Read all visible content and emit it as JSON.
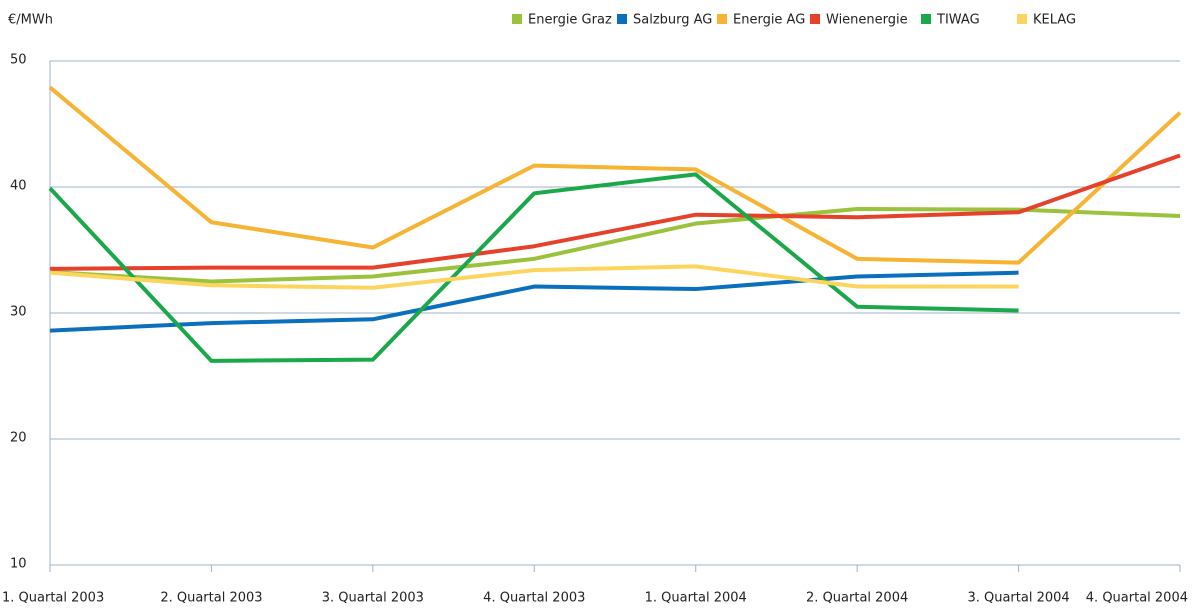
{
  "chart_data": {
    "type": "line",
    "y_label": "€/MWh",
    "categories": [
      "1. Quartal 2003",
      "2. Quartal 2003",
      "3. Quartal 2003",
      "4. Quartal 2003",
      "1. Quartal 2004",
      "2. Quartal 2004",
      "3. Quartal 2004",
      "4. Quartal 2004"
    ],
    "series": [
      {
        "name": "Energie Graz",
        "color": "#9bc23c",
        "values": [
          33.25,
          32.5,
          32.9,
          34.3,
          37.1,
          38.25,
          38.2,
          37.7
        ]
      },
      {
        "name": "Salzburg AG",
        "color": "#0a6fbd",
        "values": [
          28.6,
          29.2,
          29.5,
          32.1,
          31.9,
          32.9,
          33.2,
          null
        ]
      },
      {
        "name": "Energie AG",
        "color": "#f6b334",
        "values": [
          47.9,
          37.2,
          35.2,
          41.7,
          41.4,
          34.3,
          34.0,
          45.9
        ]
      },
      {
        "name": "Wienenergie",
        "color": "#e6412b",
        "values": [
          33.5,
          33.6,
          33.6,
          35.3,
          37.8,
          37.6,
          38.0,
          42.5
        ]
      },
      {
        "name": "TIWAG",
        "color": "#1ba84a",
        "values": [
          39.9,
          26.2,
          26.3,
          39.5,
          41.0,
          30.5,
          30.2,
          null
        ]
      },
      {
        "name": "KELAG",
        "color": "#fcd55e",
        "values": [
          33.2,
          32.2,
          32.0,
          33.4,
          33.7,
          32.1,
          32.1,
          null
        ]
      }
    ],
    "ylim": [
      10,
      50
    ],
    "yticks": [
      10,
      20,
      30,
      40,
      50
    ],
    "grid": true,
    "legend": "top-right"
  }
}
